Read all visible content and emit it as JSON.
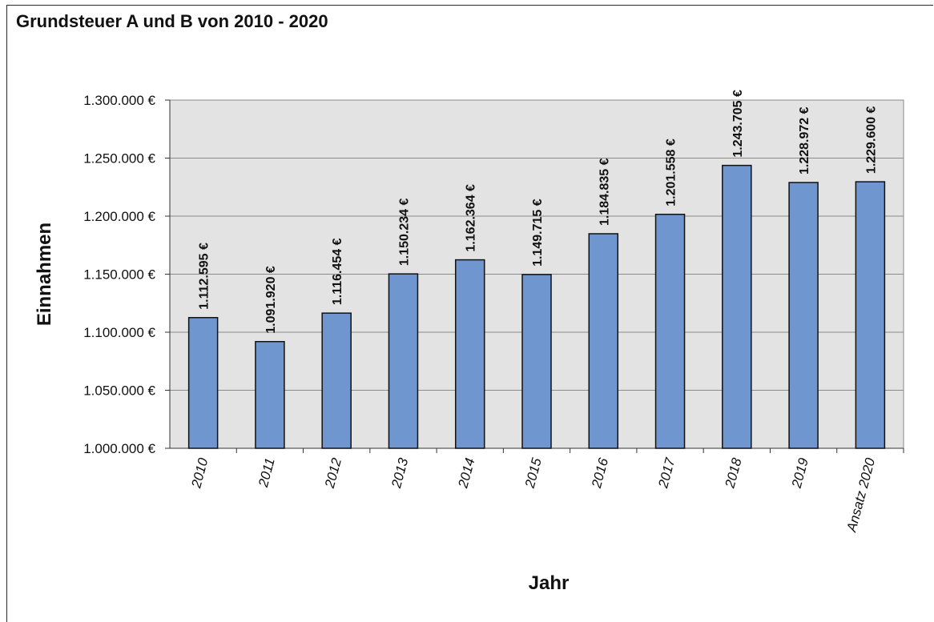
{
  "chart_data": {
    "type": "bar",
    "title": "Grundsteuer A und B von 2010 - 2020",
    "xlabel": "Jahr",
    "ylabel": "Einnahmen",
    "categories": [
      "2010",
      "2011",
      "2012",
      "2013",
      "2014",
      "2015",
      "2016",
      "2017",
      "2018",
      "2019",
      "Ansatz 2020"
    ],
    "values": [
      1112595,
      1091920,
      1116454,
      1150234,
      1162364,
      1149715,
      1184835,
      1201558,
      1243705,
      1228972,
      1229600
    ],
    "data_labels": [
      "1.112.595 €",
      "1.091.920 €",
      "1.116.454 €",
      "1.150.234 €",
      "1.162.364 €",
      "1.149.715 €",
      "1.184.835 €",
      "1.201.558 €",
      "1.243.705 €",
      "1.228.972 €",
      "1.229.600 €"
    ],
    "yticks": [
      1000000,
      1050000,
      1100000,
      1150000,
      1200000,
      1250000,
      1300000
    ],
    "ytick_labels": [
      "1.000.000 €",
      "1.050.000 €",
      "1.100.000 €",
      "1.150.000 €",
      "1.200.000 €",
      "1.250.000 €",
      "1.300.000 €"
    ],
    "ylim": [
      1000000,
      1300000
    ],
    "grid": true,
    "legend": "none",
    "colors": {
      "bar_fill": "#6f96cf",
      "bar_stroke": "#111111",
      "plot_background": "#e3e3e3",
      "gridline": "#8a8a8a"
    }
  }
}
